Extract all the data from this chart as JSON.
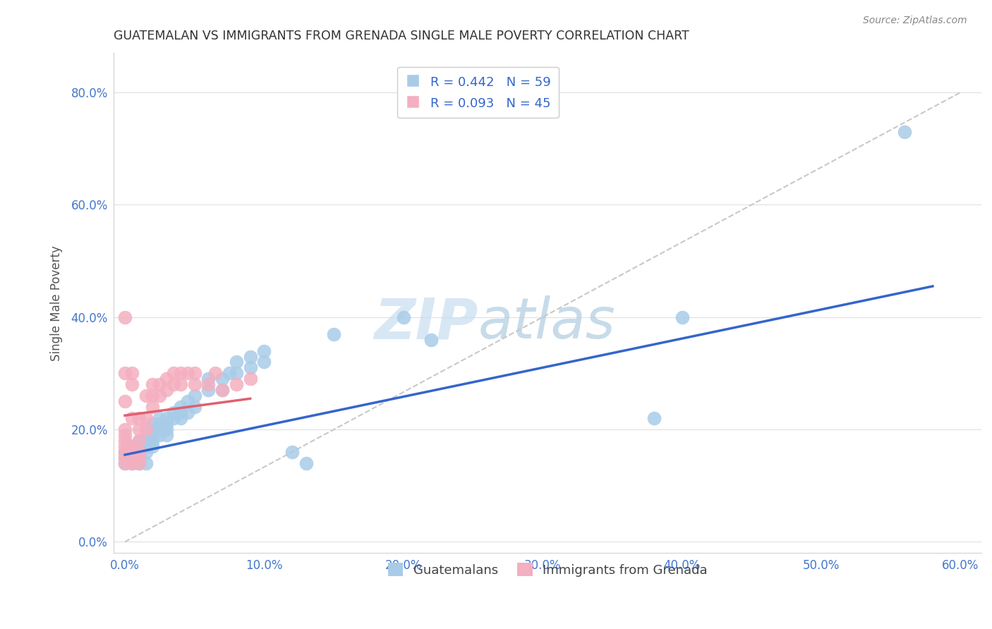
{
  "title": "GUATEMALAN VS IMMIGRANTS FROM GRENADA SINGLE MALE POVERTY CORRELATION CHART",
  "source": "Source: ZipAtlas.com",
  "ylabel_label": "Single Male Poverty",
  "legend_label1": "Guatemalans",
  "legend_label2": "Immigrants from Grenada",
  "R1": 0.442,
  "N1": 59,
  "R2": 0.093,
  "N2": 45,
  "color1": "#a8cce8",
  "color2": "#f4afc0",
  "line1_color": "#3366cc",
  "line2_color": "#e06070",
  "line_dash_color": "#c8c8c8",
  "xlim": [
    0.0,
    0.6
  ],
  "ylim": [
    0.0,
    0.85
  ],
  "x_ticks": [
    0.0,
    0.1,
    0.2,
    0.3,
    0.4,
    0.5,
    0.6
  ],
  "y_ticks": [
    0.0,
    0.2,
    0.4,
    0.6,
    0.8
  ],
  "guatemalan_x": [
    0.0,
    0.0,
    0.0,
    0.005,
    0.005,
    0.005,
    0.005,
    0.007,
    0.007,
    0.01,
    0.01,
    0.01,
    0.01,
    0.01,
    0.015,
    0.015,
    0.015,
    0.015,
    0.02,
    0.02,
    0.02,
    0.02,
    0.02,
    0.025,
    0.025,
    0.025,
    0.025,
    0.03,
    0.03,
    0.03,
    0.03,
    0.035,
    0.035,
    0.04,
    0.04,
    0.04,
    0.045,
    0.045,
    0.05,
    0.05,
    0.06,
    0.06,
    0.07,
    0.07,
    0.075,
    0.08,
    0.08,
    0.09,
    0.09,
    0.1,
    0.1,
    0.12,
    0.13,
    0.15,
    0.2,
    0.22,
    0.38,
    0.4,
    0.56
  ],
  "guatemalan_y": [
    0.14,
    0.15,
    0.16,
    0.14,
    0.15,
    0.16,
    0.17,
    0.15,
    0.16,
    0.14,
    0.15,
    0.16,
    0.17,
    0.18,
    0.14,
    0.16,
    0.17,
    0.18,
    0.17,
    0.18,
    0.19,
    0.2,
    0.21,
    0.19,
    0.2,
    0.21,
    0.22,
    0.19,
    0.2,
    0.21,
    0.22,
    0.22,
    0.23,
    0.22,
    0.23,
    0.24,
    0.23,
    0.25,
    0.24,
    0.26,
    0.27,
    0.29,
    0.27,
    0.29,
    0.3,
    0.3,
    0.32,
    0.31,
    0.33,
    0.32,
    0.34,
    0.16,
    0.14,
    0.37,
    0.4,
    0.36,
    0.22,
    0.4,
    0.73
  ],
  "grenada_x": [
    0.0,
    0.0,
    0.0,
    0.0,
    0.0,
    0.0,
    0.0,
    0.0,
    0.0,
    0.0,
    0.005,
    0.005,
    0.005,
    0.005,
    0.005,
    0.005,
    0.005,
    0.01,
    0.01,
    0.01,
    0.01,
    0.01,
    0.01,
    0.015,
    0.015,
    0.015,
    0.02,
    0.02,
    0.02,
    0.025,
    0.025,
    0.03,
    0.03,
    0.035,
    0.035,
    0.04,
    0.04,
    0.045,
    0.05,
    0.05,
    0.06,
    0.065,
    0.07,
    0.08,
    0.09
  ],
  "grenada_y": [
    0.14,
    0.15,
    0.16,
    0.17,
    0.18,
    0.19,
    0.2,
    0.25,
    0.3,
    0.4,
    0.14,
    0.15,
    0.16,
    0.17,
    0.22,
    0.28,
    0.3,
    0.14,
    0.15,
    0.16,
    0.18,
    0.2,
    0.22,
    0.2,
    0.22,
    0.26,
    0.24,
    0.26,
    0.28,
    0.26,
    0.28,
    0.27,
    0.29,
    0.28,
    0.3,
    0.28,
    0.3,
    0.3,
    0.28,
    0.3,
    0.28,
    0.3,
    0.27,
    0.28,
    0.29
  ],
  "blue_line_x": [
    0.0,
    0.58
  ],
  "blue_line_y": [
    0.155,
    0.455
  ],
  "pink_line_x": [
    0.0,
    0.09
  ],
  "pink_line_y": [
    0.225,
    0.255
  ],
  "dash_line_x": [
    0.0,
    0.6
  ],
  "dash_line_y": [
    0.0,
    0.8
  ]
}
